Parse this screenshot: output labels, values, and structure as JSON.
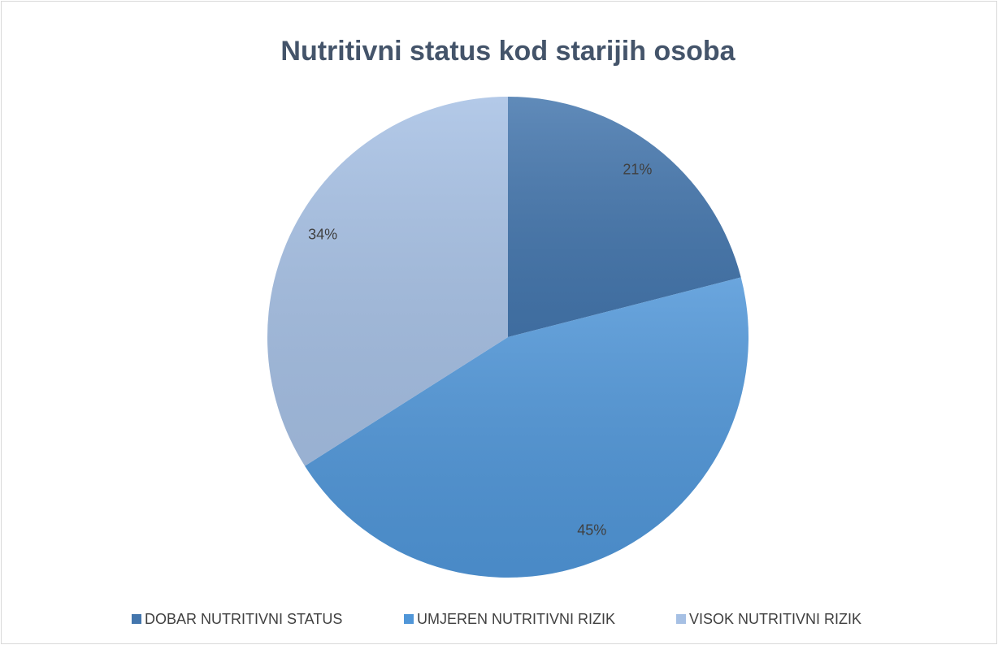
{
  "chart_data": {
    "type": "pie",
    "title": "Nutritivni status kod starijih osoba",
    "categories": [
      "DOBAR NUTRITIVNI STATUS",
      "UMJEREN NUTRITIVNI RIZIK",
      "VISOK NUTRITIVNI RIZIK"
    ],
    "values": [
      21,
      45,
      34
    ],
    "value_labels": [
      "21%",
      "45%",
      "34%"
    ],
    "colors": [
      "#4476ad",
      "#5096d8",
      "#a6c0e4"
    ],
    "legend": "bottom"
  }
}
